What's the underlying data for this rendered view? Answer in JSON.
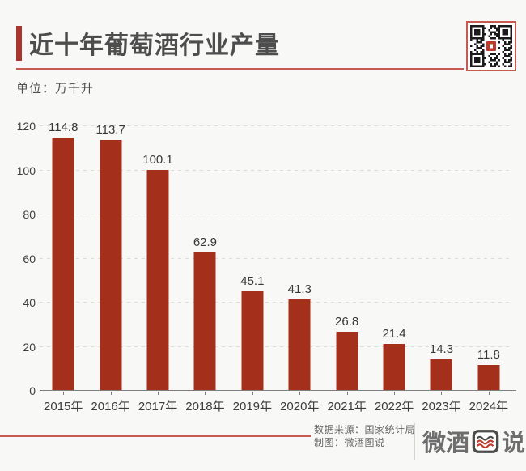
{
  "header": {
    "title": "近十年葡萄酒行业产量",
    "unit_label": "单位：万千升",
    "accent_color": "#C75A50",
    "title_color": "#4D4D4D"
  },
  "chart_data": {
    "type": "bar",
    "title": "近十年葡萄酒行业产量",
    "unit": "万千升",
    "categories": [
      "2015年",
      "2016年",
      "2017年",
      "2018年",
      "2019年",
      "2020年",
      "2021年",
      "2022年",
      "2023年",
      "2024年"
    ],
    "values": [
      114.8,
      113.7,
      100.1,
      62.9,
      45.1,
      41.3,
      26.8,
      21.4,
      14.3,
      11.8
    ],
    "xlabel": "",
    "ylabel": "",
    "ylim": [
      0,
      120
    ],
    "y_ticks": [
      0,
      20,
      40,
      60,
      80,
      100,
      120
    ],
    "grid": "horizontal-dashed",
    "legend": "none",
    "bar_color": "#A4301B",
    "value_labels_shown": true
  },
  "footer": {
    "source": "数据来源：国家统计局",
    "credit": "制图：微酒图说",
    "logo_left": "微酒",
    "logo_boxed_char": "图",
    "logo_right": "说"
  }
}
